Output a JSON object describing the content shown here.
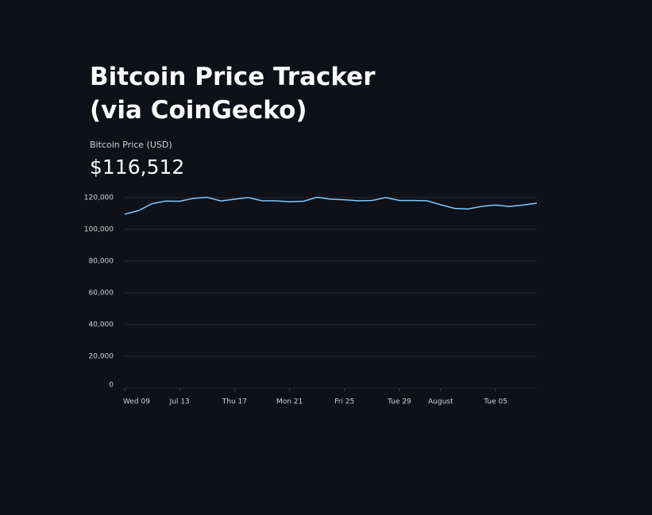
{
  "header": {
    "title": "Bitcoin Price Tracker (via CoinGecko)"
  },
  "metric": {
    "label": "Bitcoin Price (USD)",
    "value": "$116,512"
  },
  "chart_data": {
    "type": "line",
    "x": [
      "07-09",
      "07-10",
      "07-11",
      "07-12",
      "07-13",
      "07-14",
      "07-15",
      "07-16",
      "07-17",
      "07-18",
      "07-19",
      "07-20",
      "07-21",
      "07-22",
      "07-23",
      "07-24",
      "07-25",
      "07-26",
      "07-27",
      "07-28",
      "07-29",
      "07-30",
      "07-31",
      "08-01",
      "08-02",
      "08-03",
      "08-04",
      "08-05",
      "08-06",
      "08-07",
      "08-08"
    ],
    "series": [
      {
        "color": "#83c9ff",
        "values": [
          109500,
          111800,
          116200,
          117800,
          117700,
          119500,
          120200,
          117900,
          119000,
          120000,
          118000,
          118000,
          117400,
          117700,
          120200,
          119000,
          118600,
          118000,
          118200,
          120000,
          118200,
          118200,
          118000,
          115500,
          113200,
          112800,
          114500,
          115300,
          114400,
          115300,
          116512
        ]
      }
    ],
    "xlim": [
      "07-09",
      "08-08"
    ],
    "xticks": [
      {
        "value": "07-09",
        "label": "Wed 09"
      },
      {
        "value": "07-13",
        "label": "Jul 13"
      },
      {
        "value": "07-17",
        "label": "Thu 17"
      },
      {
        "value": "07-21",
        "label": "Mon 21"
      },
      {
        "value": "07-25",
        "label": "Fri 25"
      },
      {
        "value": "07-29",
        "label": "Tue 29"
      },
      {
        "value": "08-01",
        "label": "August"
      },
      {
        "value": "08-05",
        "label": "Tue 05"
      }
    ],
    "ylim": [
      0,
      120000
    ],
    "yticks": [
      0,
      {
        "value": 20000,
        "label": "20,000"
      },
      {
        "value": 40000,
        "label": "40,000"
      },
      {
        "value": 60000,
        "label": "60,000"
      },
      {
        "value": 80000,
        "label": "80,000"
      },
      {
        "value": 100000,
        "label": "100,000"
      },
      {
        "value": 120000,
        "label": "120,000"
      }
    ],
    "grid": true
  }
}
